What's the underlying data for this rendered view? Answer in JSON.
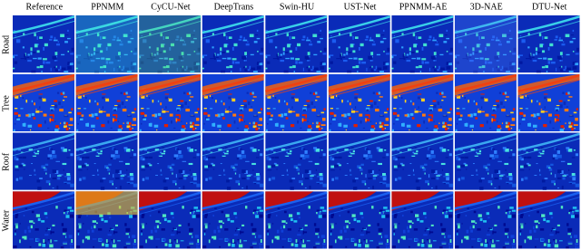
{
  "columns": [
    "Reference",
    "PPNMM",
    "CyCU-Net",
    "DeepTrans",
    "Swin-HU",
    "UST-Net",
    "PPNMM-AE",
    "3D-NAE",
    "DTU-Net"
  ],
  "rows": [
    "Road",
    "Tree",
    "Roof",
    "Water"
  ]
}
